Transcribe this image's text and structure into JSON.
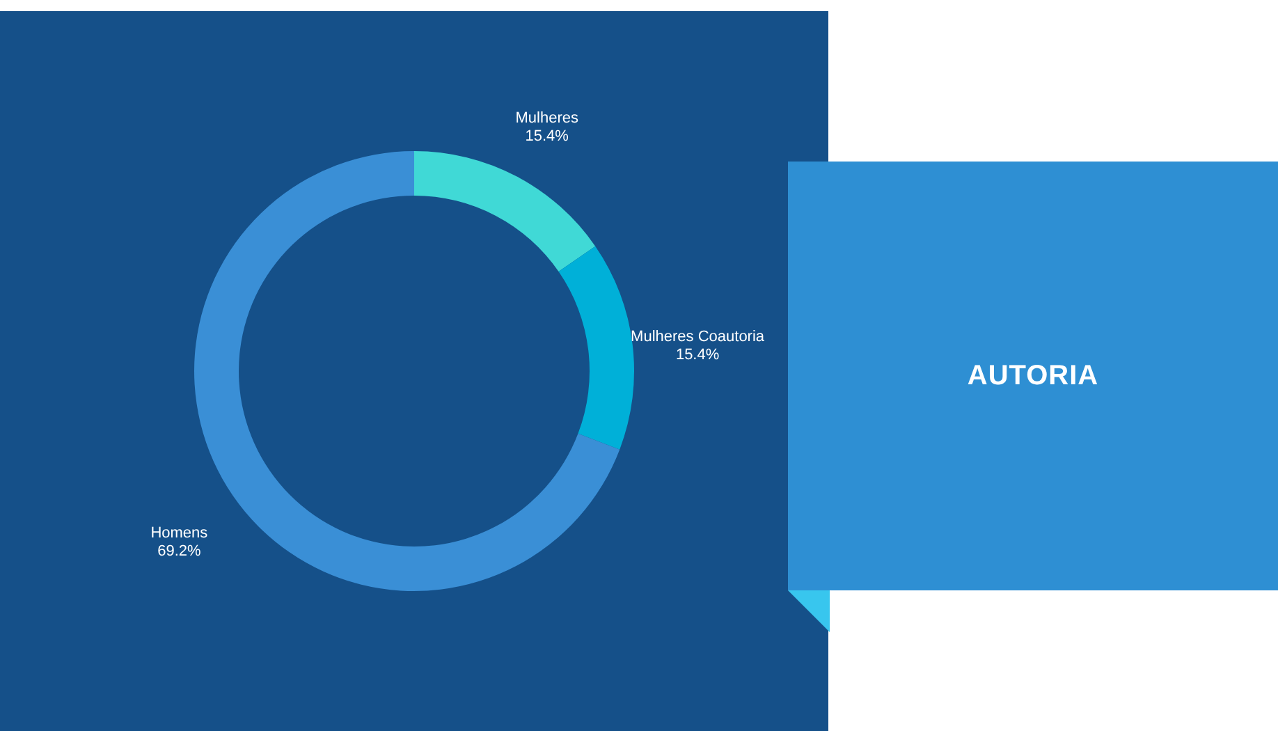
{
  "chart_data": {
    "type": "donut",
    "title": "AUTORIA",
    "categories": [
      "Mulheres",
      "Mulheres Coautoria",
      "Homens"
    ],
    "values": [
      15.4,
      15.4,
      69.2
    ],
    "value_labels": [
      "15.4%",
      "15.4%",
      "69.2%"
    ],
    "colors": [
      "#40d9d6",
      "#00b0d8",
      "#3a8fd6"
    ]
  }
}
